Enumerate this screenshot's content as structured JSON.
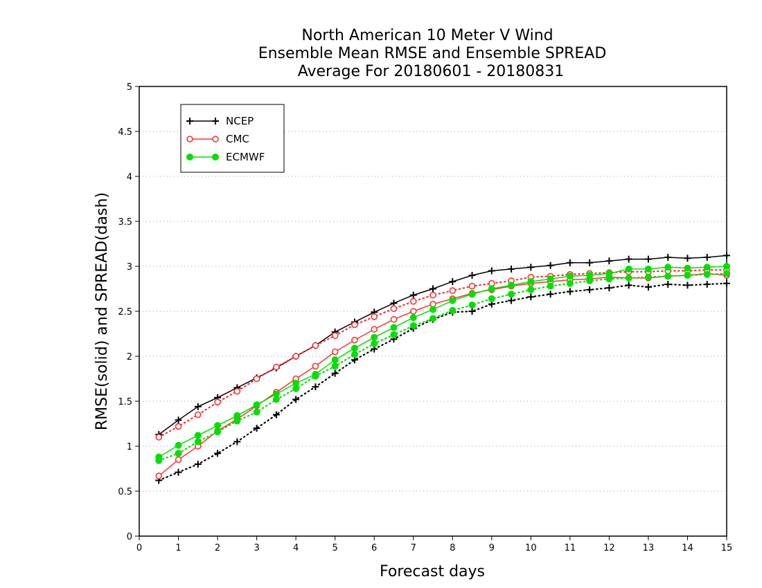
{
  "chart_data": {
    "type": "line",
    "title_lines": [
      "North American 10 Meter V Wind",
      "Ensemble Mean RMSE and Ensemble SPREAD",
      "Average For 20180601 - 20180831"
    ],
    "xlabel": "Forecast days",
    "ylabel": "RMSE(solid) and SPREAD(dash)",
    "xlim": [
      0,
      15
    ],
    "ylim": [
      0,
      5
    ],
    "x_ticks": [
      "0",
      "1",
      "2",
      "3",
      "4",
      "5",
      "6",
      "7",
      "8",
      "9",
      "10",
      "11",
      "12",
      "13",
      "14",
      "15"
    ],
    "y_ticks": [
      "0",
      "0.5",
      "1",
      "1.5",
      "2",
      "2.5",
      "3",
      "3.5",
      "4",
      "4.5",
      "5"
    ],
    "grid": "horizontal dotted",
    "legend_position": "top-left",
    "x": [
      0.5,
      1,
      1.5,
      2,
      2.5,
      3,
      3.5,
      4,
      4.5,
      5,
      5.5,
      6,
      6.5,
      7,
      7.5,
      8,
      8.5,
      9,
      9.5,
      10,
      10.5,
      11,
      11.5,
      12,
      12.5,
      13,
      13.5,
      14,
      14.5,
      15
    ],
    "series": [
      {
        "name": "NCEP",
        "color": "#000000",
        "marker": "plus",
        "rmse": [
          1.13,
          1.29,
          1.44,
          1.54,
          1.65,
          1.76,
          1.87,
          2.0,
          2.12,
          2.27,
          2.38,
          2.49,
          2.59,
          2.68,
          2.75,
          2.83,
          2.9,
          2.95,
          2.97,
          2.99,
          3.01,
          3.04,
          3.04,
          3.06,
          3.08,
          3.08,
          3.1,
          3.09,
          3.1,
          3.12
        ],
        "spread": [
          0.62,
          0.71,
          0.8,
          0.92,
          1.05,
          1.2,
          1.35,
          1.52,
          1.66,
          1.81,
          1.96,
          2.08,
          2.19,
          2.31,
          2.41,
          2.49,
          2.5,
          2.58,
          2.62,
          2.66,
          2.69,
          2.72,
          2.74,
          2.76,
          2.79,
          2.77,
          2.8,
          2.79,
          2.8,
          2.81
        ]
      },
      {
        "name": "CMC",
        "color": "#ff3030",
        "marker": "open-circle",
        "rmse": [
          0.67,
          0.85,
          1.0,
          1.17,
          1.3,
          1.45,
          1.6,
          1.75,
          1.89,
          2.05,
          2.18,
          2.3,
          2.41,
          2.5,
          2.58,
          2.64,
          2.7,
          2.74,
          2.78,
          2.81,
          2.83,
          2.85,
          2.86,
          2.88,
          2.87,
          2.87,
          2.89,
          2.9,
          2.92,
          2.9
        ],
        "spread": [
          1.1,
          1.22,
          1.35,
          1.49,
          1.61,
          1.75,
          1.88,
          2.0,
          2.12,
          2.23,
          2.35,
          2.44,
          2.53,
          2.61,
          2.68,
          2.73,
          2.78,
          2.81,
          2.84,
          2.88,
          2.89,
          2.91,
          2.92,
          2.93,
          2.94,
          2.94,
          2.95,
          2.95,
          2.96,
          2.96
        ]
      },
      {
        "name": "ECMWF",
        "color": "#00e000",
        "marker": "filled-circle",
        "rmse": [
          0.88,
          1.01,
          1.12,
          1.23,
          1.34,
          1.46,
          1.58,
          1.7,
          1.8,
          1.96,
          2.09,
          2.21,
          2.32,
          2.43,
          2.52,
          2.62,
          2.69,
          2.75,
          2.79,
          2.83,
          2.86,
          2.89,
          2.9,
          2.92,
          2.97,
          2.97,
          2.99,
          2.98,
          2.99,
          3.0
        ],
        "spread": [
          0.84,
          0.92,
          1.05,
          1.16,
          1.28,
          1.38,
          1.52,
          1.64,
          1.78,
          1.89,
          2.02,
          2.14,
          2.24,
          2.34,
          2.42,
          2.51,
          2.57,
          2.64,
          2.69,
          2.74,
          2.78,
          2.81,
          2.84,
          2.86,
          2.87,
          2.88,
          2.89,
          2.9,
          2.91,
          2.92
        ]
      }
    ]
  }
}
